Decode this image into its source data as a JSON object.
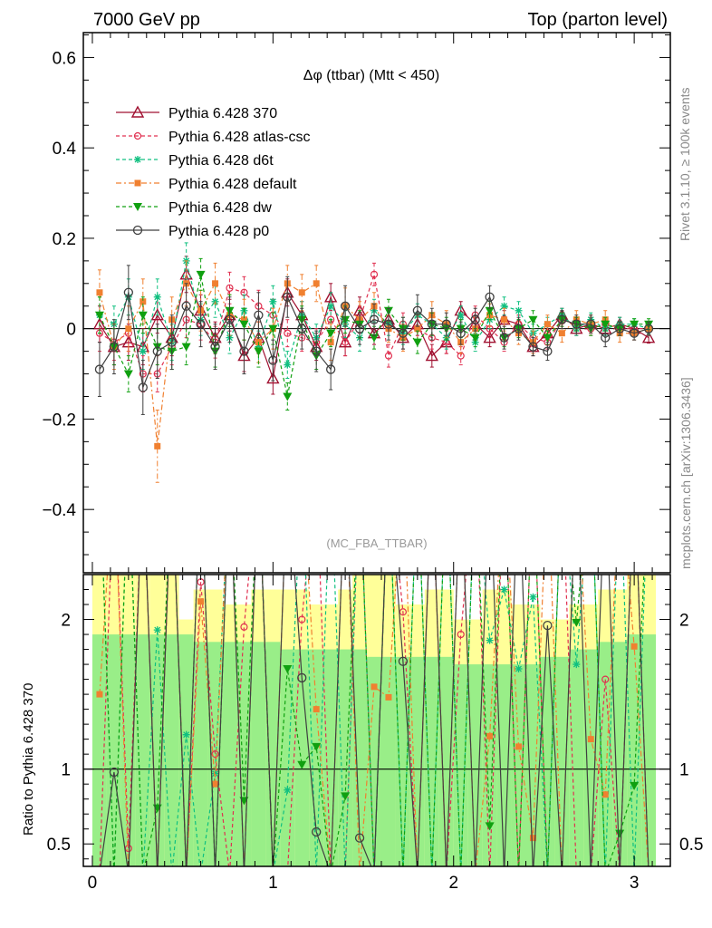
{
  "header": {
    "left": "7000 GeV pp",
    "right": "Top (parton level)"
  },
  "side_labels": {
    "rivet": "Rivet 3.1.10, ≥ 100k events",
    "mcplots": "mcplots.cern.ch [arXiv:1306.3436]"
  },
  "chart_data": [
    {
      "type": "line",
      "panel": "main",
      "title": "Δφ (ttbar) (Mtt < 450)",
      "annotation": "(MC_FBA_TTBAR)",
      "xlabel": "",
      "ylabel": "",
      "xlim": [
        -0.05,
        3.2
      ],
      "ylim": [
        -0.54,
        0.655
      ],
      "yticks": [
        -0.4,
        -0.2,
        0,
        0.2,
        0.4,
        0.6
      ],
      "ytick_labels": [
        "−0.4",
        "−0.2",
        "0",
        "0.2",
        "0.4",
        "0.6"
      ],
      "legend_position": "top-left",
      "x": [
        0.04,
        0.12,
        0.2,
        0.28,
        0.36,
        0.44,
        0.52,
        0.6,
        0.68,
        0.76,
        0.84,
        0.92,
        1.0,
        1.08,
        1.16,
        1.24,
        1.32,
        1.4,
        1.48,
        1.56,
        1.64,
        1.72,
        1.8,
        1.88,
        1.96,
        2.04,
        2.12,
        2.2,
        2.28,
        2.36,
        2.44,
        2.52,
        2.6,
        2.68,
        2.76,
        2.84,
        2.92,
        3.0,
        3.08
      ],
      "series": [
        {
          "name": "Pythia 6.428 370",
          "color": "#a01030",
          "marker": "triangle-up-open",
          "dash": "solid",
          "values": [
            0.01,
            -0.04,
            -0.03,
            -0.04,
            0.03,
            -0.02,
            0.12,
            0.04,
            -0.02,
            0.03,
            -0.06,
            -0.02,
            -0.11,
            0.08,
            0.03,
            -0.04,
            0.07,
            -0.03,
            0.04,
            -0.01,
            0.02,
            -0.02,
            0.01,
            -0.06,
            -0.03,
            0.04,
            0.01,
            -0.02,
            0.02,
            0.01,
            -0.04,
            -0.01,
            0.03,
            0.0,
            0.01,
            0.0,
            0.01,
            0.0,
            -0.02
          ],
          "errors": [
            0.04,
            0.04,
            0.04,
            0.04,
            0.04,
            0.04,
            0.04,
            0.035,
            0.035,
            0.035,
            0.035,
            0.035,
            0.035,
            0.03,
            0.03,
            0.03,
            0.03,
            0.03,
            0.03,
            0.025,
            0.025,
            0.025,
            0.025,
            0.025,
            0.025,
            0.02,
            0.02,
            0.02,
            0.02,
            0.02,
            0.02,
            0.015,
            0.015,
            0.015,
            0.015,
            0.015,
            0.015,
            0.012,
            0.012
          ]
        },
        {
          "name": "Pythia 6.428 atlas-csc",
          "color": "#e03050",
          "marker": "circle-open-small",
          "dash": "dashed",
          "values": [
            -0.01,
            -0.03,
            -0.01,
            -0.1,
            -0.1,
            -0.04,
            0.02,
            0.01,
            -0.03,
            0.09,
            0.08,
            0.05,
            0.03,
            -0.01,
            -0.02,
            -0.03,
            0.02,
            -0.03,
            0.02,
            0.12,
            -0.06,
            0.01,
            0.0,
            -0.02,
            -0.03,
            -0.06,
            0.03,
            0.0,
            -0.03,
            0.01,
            -0.02,
            -0.03,
            0.02,
            0.01,
            0.0,
            0.01,
            0.0,
            0.0,
            0.0
          ],
          "errors": [
            0.04,
            0.04,
            0.04,
            0.04,
            0.04,
            0.04,
            0.04,
            0.035,
            0.035,
            0.035,
            0.035,
            0.035,
            0.035,
            0.03,
            0.03,
            0.03,
            0.03,
            0.03,
            0.03,
            0.025,
            0.025,
            0.025,
            0.025,
            0.025,
            0.025,
            0.02,
            0.02,
            0.02,
            0.02,
            0.02,
            0.02,
            0.015,
            0.015,
            0.015,
            0.015,
            0.015,
            0.015,
            0.012,
            0.012
          ]
        },
        {
          "name": "Pythia 6.428 d6t",
          "color": "#10c080",
          "marker": "star",
          "dash": "dashed",
          "values": [
            0.03,
            0.01,
            0.07,
            -0.05,
            0.07,
            -0.03,
            0.15,
            0.02,
            0.06,
            -0.02,
            0.04,
            -0.04,
            0.06,
            -0.08,
            0.03,
            -0.02,
            0.05,
            0.01,
            -0.02,
            0.04,
            0.01,
            -0.01,
            0.03,
            0.01,
            -0.02,
            0.03,
            -0.03,
            0.02,
            0.05,
            0.04,
            -0.01,
            0.01,
            0.03,
            0.0,
            0.02,
            0.0,
            0.01,
            0.01,
            0.0
          ],
          "errors": [
            0.04,
            0.04,
            0.04,
            0.04,
            0.04,
            0.04,
            0.04,
            0.035,
            0.035,
            0.035,
            0.035,
            0.035,
            0.035,
            0.03,
            0.03,
            0.03,
            0.03,
            0.03,
            0.03,
            0.025,
            0.025,
            0.025,
            0.025,
            0.025,
            0.025,
            0.02,
            0.02,
            0.02,
            0.02,
            0.02,
            0.02,
            0.015,
            0.015,
            0.015,
            0.015,
            0.015,
            0.015,
            0.012,
            0.012
          ]
        },
        {
          "name": "Pythia 6.428 default",
          "color": "#f08030",
          "marker": "square",
          "dash": "dashdot",
          "values": [
            0.08,
            -0.04,
            0.0,
            0.06,
            -0.26,
            0.02,
            0.1,
            0.04,
            0.1,
            0.03,
            0.02,
            -0.03,
            0.0,
            0.1,
            0.08,
            0.1,
            -0.03,
            0.05,
            0.02,
            0.05,
            0.0,
            -0.02,
            0.0,
            0.03,
            0.01,
            -0.03,
            0.0,
            0.03,
            0.02,
            -0.01,
            -0.03,
            0.01,
            -0.01,
            0.02,
            0.01,
            0.02,
            -0.01,
            -0.01,
            0.0
          ],
          "errors": [
            0.05,
            0.05,
            0.05,
            0.05,
            0.08,
            0.05,
            0.05,
            0.045,
            0.045,
            0.045,
            0.045,
            0.045,
            0.045,
            0.04,
            0.04,
            0.04,
            0.04,
            0.04,
            0.04,
            0.03,
            0.03,
            0.03,
            0.03,
            0.03,
            0.03,
            0.025,
            0.025,
            0.025,
            0.025,
            0.025,
            0.025,
            0.02,
            0.02,
            0.02,
            0.02,
            0.02,
            0.02,
            0.015,
            0.015
          ]
        },
        {
          "name": "Pythia 6.428 dw",
          "color": "#10a010",
          "marker": "triangle-down",
          "dash": "dashed",
          "values": [
            0.03,
            -0.04,
            -0.1,
            0.03,
            -0.04,
            -0.05,
            -0.04,
            0.12,
            -0.05,
            0.04,
            0.01,
            -0.05,
            0.0,
            -0.15,
            0.02,
            -0.06,
            -0.01,
            0.02,
            0.01,
            -0.02,
            0.04,
            0.0,
            -0.03,
            0.01,
            0.0,
            0.0,
            -0.02,
            0.04,
            -0.02,
            0.0,
            0.02,
            -0.02,
            0.02,
            0.01,
            0.0,
            0.01,
            0.0,
            0.01,
            0.01
          ],
          "errors": [
            0.04,
            0.04,
            0.04,
            0.04,
            0.04,
            0.04,
            0.04,
            0.035,
            0.035,
            0.035,
            0.035,
            0.035,
            0.035,
            0.03,
            0.03,
            0.03,
            0.03,
            0.03,
            0.03,
            0.025,
            0.025,
            0.025,
            0.025,
            0.025,
            0.025,
            0.02,
            0.02,
            0.02,
            0.02,
            0.02,
            0.02,
            0.015,
            0.015,
            0.015,
            0.015,
            0.015,
            0.015,
            0.012,
            0.012
          ]
        },
        {
          "name": "Pythia 6.428 p0",
          "color": "#404040",
          "marker": "circle-open",
          "dash": "solid",
          "values": [
            -0.09,
            -0.04,
            0.08,
            -0.13,
            -0.05,
            -0.03,
            0.05,
            0.01,
            -0.04,
            0.02,
            -0.05,
            0.03,
            -0.07,
            0.07,
            0.0,
            -0.05,
            -0.09,
            0.05,
            0.0,
            0.02,
            0.01,
            -0.01,
            0.04,
            0.01,
            0.01,
            -0.01,
            0.02,
            0.07,
            -0.02,
            0.0,
            -0.04,
            -0.05,
            0.02,
            0.01,
            0.01,
            -0.02,
            0.0,
            -0.01,
            0.0
          ],
          "errors": [
            0.06,
            0.06,
            0.06,
            0.06,
            0.06,
            0.06,
            0.05,
            0.05,
            0.05,
            0.05,
            0.05,
            0.05,
            0.045,
            0.045,
            0.045,
            0.045,
            0.045,
            0.045,
            0.035,
            0.035,
            0.035,
            0.035,
            0.035,
            0.035,
            0.025,
            0.025,
            0.025,
            0.025,
            0.025,
            0.025,
            0.02,
            0.02,
            0.02,
            0.02,
            0.02,
            0.02,
            0.015,
            0.015,
            0.015
          ]
        }
      ]
    },
    {
      "type": "line",
      "panel": "ratio",
      "ylabel": "Ratio to Pythia 6.428 370",
      "xlim": [
        -0.05,
        3.2
      ],
      "ylim": [
        0.35,
        2.3
      ],
      "yticks": [
        0.5,
        1,
        2
      ],
      "ytick_labels": [
        "0.5",
        "1",
        "2"
      ],
      "xticks": [
        0,
        1,
        2,
        3
      ],
      "xtick_labels": [
        "0",
        "1",
        "2",
        "3"
      ],
      "reference_line": 1,
      "band_green_half_width": [
        0.9,
        0.9,
        0.9,
        0.9,
        0.9,
        0.9,
        0.9,
        0.85,
        0.85,
        0.85,
        0.85,
        0.85,
        0.85,
        0.8,
        0.8,
        0.8,
        0.8,
        0.8,
        0.8,
        0.75,
        0.75,
        0.75,
        0.75,
        0.75,
        0.75,
        0.7,
        0.7,
        0.7,
        0.7,
        0.7,
        0.7,
        0.75,
        0.75,
        0.8,
        0.8,
        0.85,
        0.85,
        0.9,
        0.9
      ],
      "band_yellow_half_width": [
        1.4,
        1.4,
        1.4,
        1.4,
        1.4,
        1.4,
        1.0,
        1.2,
        1.2,
        1.1,
        1.1,
        1.2,
        1.2,
        1.2,
        1.2,
        1.1,
        1.1,
        1.2,
        1.3,
        1.3,
        1.3,
        1.1,
        1.1,
        1.2,
        1.2,
        1.0,
        1.0,
        1.2,
        1.2,
        1.1,
        1.1,
        1.0,
        1.0,
        1.1,
        1.1,
        1.2,
        1.2,
        1.4,
        1.4
      ],
      "series": [
        {
          "name": "Pythia 6.428 atlas-csc",
          "color": "#e03050",
          "marker": "circle-open-small",
          "dash": "dashed",
          "values": [
            0.3,
            3.0,
            0.47,
            3.0,
            0.3,
            3.0,
            0.3,
            2.25,
            1.1,
            0.3,
            1.95,
            3.0,
            0.3,
            0.3,
            2.0,
            3.0,
            0.3,
            0.3,
            3.0,
            0.3,
            3.0,
            2.05,
            0.3,
            3.0,
            0.3,
            1.9,
            3.0,
            0.3,
            3.0,
            0.3,
            3.0,
            0.3,
            3.0,
            0.3,
            0.3,
            1.6,
            0.3,
            3.0,
            0.3
          ]
        },
        {
          "name": "Pythia 6.428 d6t",
          "color": "#10c080",
          "marker": "star",
          "dash": "dashed",
          "values": [
            3.0,
            0.3,
            3.0,
            0.3,
            1.93,
            0.3,
            1.23,
            0.3,
            0.97,
            3.0,
            0.3,
            3.0,
            0.3,
            0.86,
            3.0,
            0.3,
            3.0,
            0.3,
            3.0,
            0.3,
            3.0,
            0.3,
            3.0,
            0.3,
            3.0,
            0.3,
            3.0,
            1.86,
            2.2,
            1.67,
            2.15,
            0.3,
            3.0,
            1.7,
            3.0,
            0.3,
            3.0,
            0.3,
            3.0
          ]
        },
        {
          "name": "Pythia 6.428 default",
          "color": "#f08030",
          "marker": "square",
          "dash": "dashdot",
          "values": [
            1.5,
            3.0,
            0.3,
            3.0,
            0.3,
            3.0,
            0.3,
            2.12,
            0.9,
            3.0,
            0.3,
            3.0,
            0.3,
            3.0,
            3.0,
            1.4,
            0.3,
            3.0,
            0.3,
            1.55,
            1.48,
            3.0,
            0.3,
            3.0,
            0.3,
            3.0,
            0.3,
            1.22,
            3.0,
            1.15,
            0.54,
            3.0,
            0.3,
            3.0,
            1.2,
            0.83,
            3.0,
            1.82,
            0.3
          ]
        },
        {
          "name": "Pythia 6.428 dw",
          "color": "#10a010",
          "marker": "triangle-down",
          "dash": "dashed",
          "values": [
            3.0,
            0.3,
            3.0,
            0.3,
            0.74,
            3.0,
            0.3,
            3.0,
            0.3,
            3.0,
            0.79,
            3.0,
            0.3,
            1.67,
            1.03,
            1.15,
            0.3,
            0.82,
            3.0,
            0.3,
            3.0,
            0.3,
            3.0,
            0.3,
            3.0,
            0.3,
            3.0,
            0.62,
            3.0,
            0.3,
            3.0,
            0.3,
            3.0,
            1.98,
            3.0,
            0.3,
            0.57,
            0.89,
            3.0
          ]
        },
        {
          "name": "Pythia 6.428 p0",
          "color": "#404040",
          "marker": "circle-open",
          "dash": "solid",
          "values": [
            0.3,
            0.98,
            0.3,
            3.0,
            0.3,
            3.0,
            0.3,
            3.0,
            0.3,
            3.0,
            0.3,
            3.0,
            0.3,
            3.0,
            1.61,
            0.58,
            0.3,
            3.0,
            0.54,
            0.3,
            3.0,
            1.72,
            0.3,
            3.0,
            0.3,
            3.0,
            0.3,
            3.0,
            0.3,
            3.0,
            0.3,
            1.96,
            0.3,
            3.0,
            0.3,
            3.0,
            0.3,
            3.0,
            0.3
          ]
        }
      ]
    }
  ]
}
